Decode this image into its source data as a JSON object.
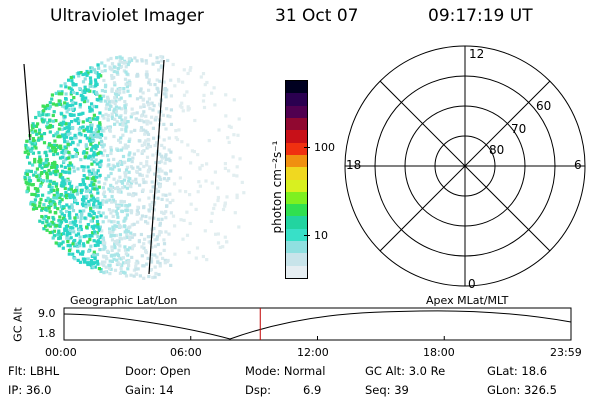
{
  "header": {
    "title": "Ultraviolet Imager",
    "date": "31 Oct 07",
    "time": "09:17:19 UT"
  },
  "colorbar": {
    "label": "photon cm⁻²s⁻¹",
    "ticks": [
      "100",
      "10"
    ],
    "colors": [
      "#e6eef2",
      "#c8e4ea",
      "#8fe0e0",
      "#38e0c8",
      "#22d4a0",
      "#30e050",
      "#7ef020",
      "#d8f020",
      "#f0d820",
      "#f09010",
      "#f03010",
      "#c81018",
      "#900830",
      "#500050",
      "#2a0050",
      "#000020"
    ]
  },
  "polar_plot": {
    "mlt_labels": {
      "top": "12",
      "right": "6",
      "bottom": "0",
      "left": "18"
    },
    "lat_labels": [
      "60",
      "70",
      "80"
    ]
  },
  "timeline": {
    "left_label": "Geographic Lat/Lon",
    "right_label": "Apex MLat/MLT",
    "ylabel": "GC Alt",
    "y_ticks": [
      "9.0",
      "1.8"
    ],
    "x_ticks": [
      "00:00",
      "06:00",
      "12:00",
      "18:00",
      "23:59"
    ],
    "marker_time_hours": 9.29,
    "marker_color": "#c00000"
  },
  "info": {
    "flt": "Flt: LBHL",
    "ip": "IP: 36.0",
    "door": "Door: Open",
    "gain": "Gain: 14",
    "mode": "Mode: Normal",
    "dsp_label": "Dsp:",
    "dsp_value": "6.9",
    "gc_alt": "GC Alt: 3.0 Re",
    "seq": "Seq: 39",
    "glat": "GLat:  18.6",
    "glon": "GLon: 326.5"
  }
}
